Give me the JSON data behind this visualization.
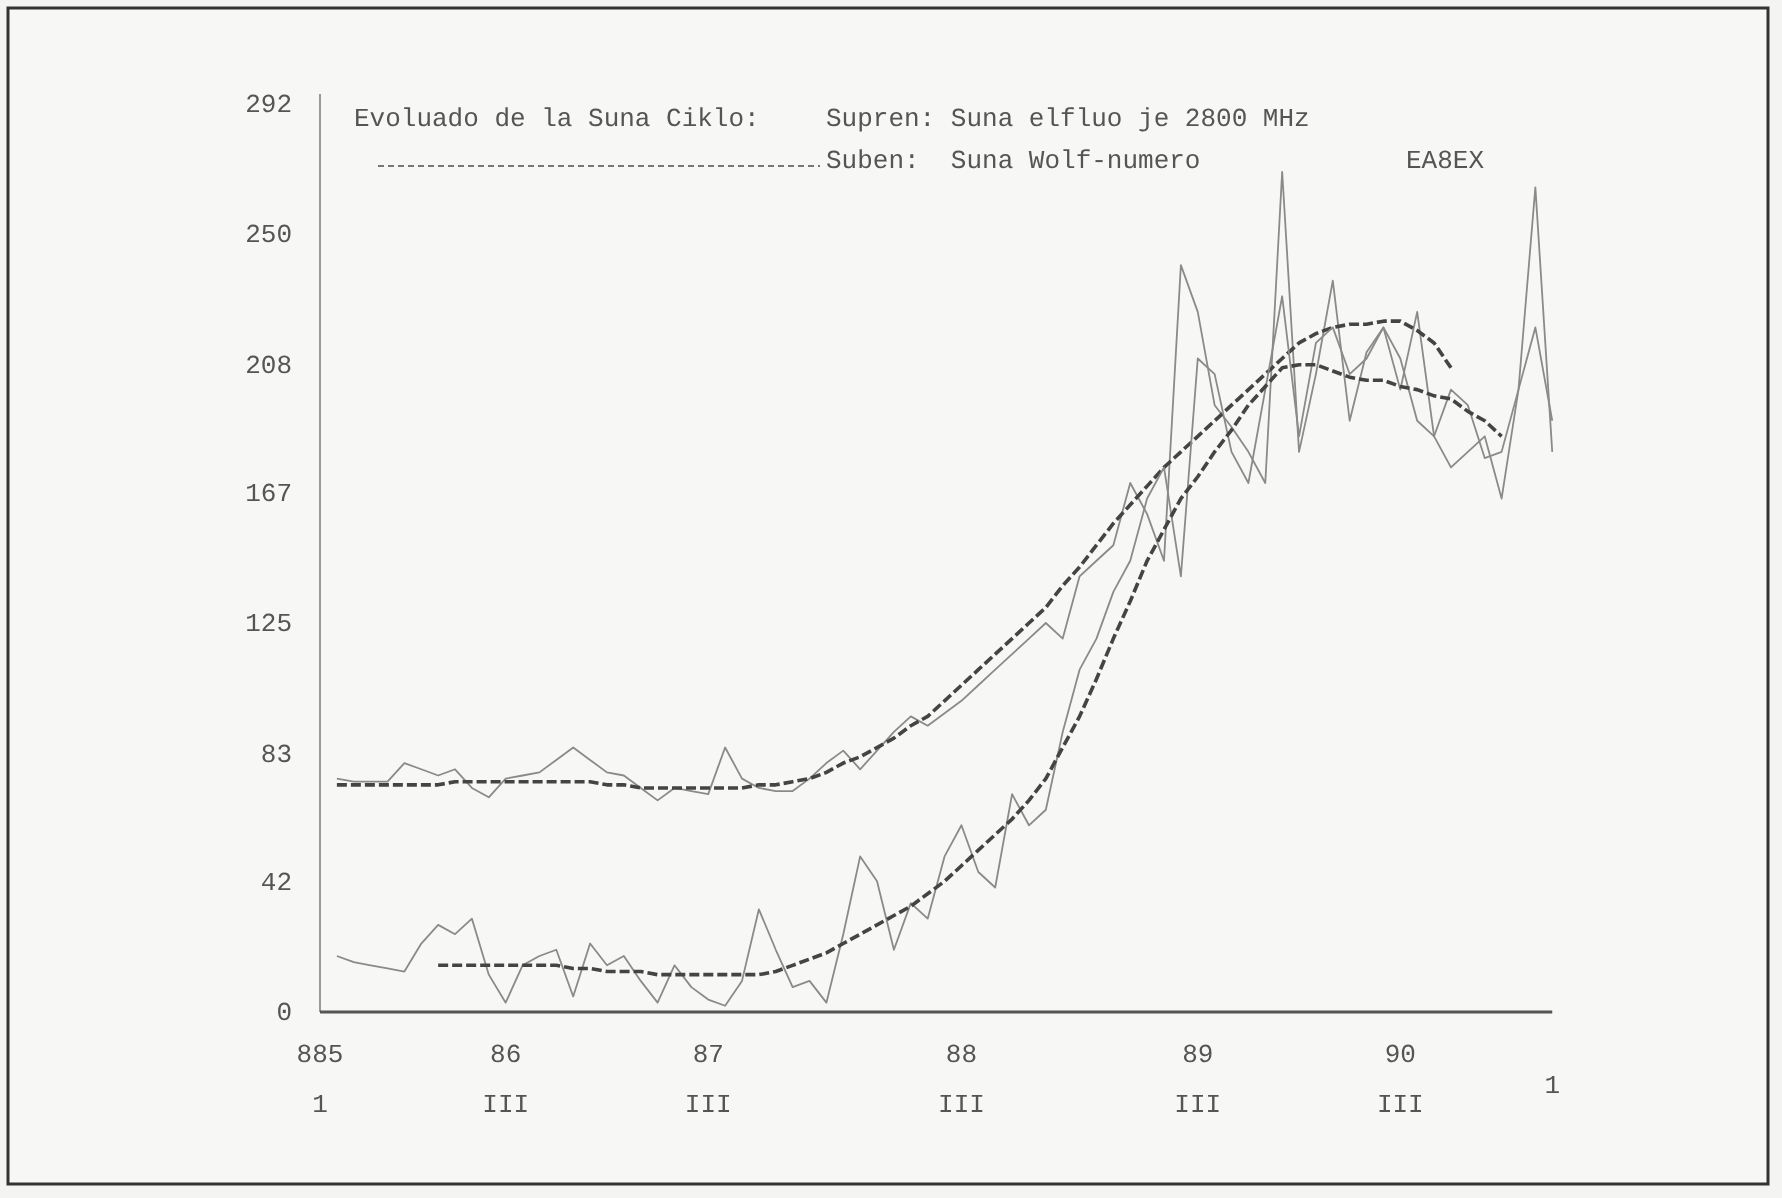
{
  "chart_data": {
    "type": "line",
    "title": "Evoluado de la Suna Ciklo:",
    "annotations": [
      "Supren: Suna elfluo je 2800 MHz",
      "Suben:  Suna Wolf-numero",
      "EA8EX"
    ],
    "categories": [
      "885\n1",
      null,
      null,
      null,
      null,
      null,
      null,
      null,
      null,
      null,
      null,
      "86\nIII",
      null,
      null,
      null,
      null,
      null,
      null,
      null,
      null,
      null,
      null,
      null,
      "87\nIII",
      null,
      null,
      null,
      null,
      null,
      null,
      null,
      null,
      null,
      null,
      null,
      null,
      null,
      null,
      "88\nIII",
      null,
      null,
      null,
      null,
      null,
      null,
      null,
      null,
      null,
      null,
      null,
      null,
      null,
      "89\nIII",
      null,
      null,
      null,
      null,
      null,
      null,
      null,
      null,
      null,
      null,
      null,
      "90\nIII",
      null,
      null,
      null,
      null,
      null,
      null,
      null,
      null,
      "\n1"
    ],
    "ylim": [
      0,
      295
    ],
    "yticks": [
      0,
      42,
      83,
      125,
      167,
      208,
      250,
      292
    ],
    "grid": false,
    "marker": "none",
    "series": [
      {
        "color": "#8a8a8a",
        "line_style": "solid",
        "values": [
          null,
          75,
          74,
          74,
          74,
          80,
          78,
          76,
          78,
          72,
          69,
          75,
          76,
          77,
          81,
          85,
          81,
          77,
          76,
          72,
          68,
          72,
          71,
          70,
          85,
          75,
          72,
          71,
          71,
          75,
          80,
          84,
          78,
          84,
          90,
          95,
          92,
          96,
          100,
          105,
          110,
          115,
          120,
          125,
          120,
          140,
          145,
          150,
          170,
          160,
          145,
          240,
          225,
          195,
          188,
          180,
          170,
          270,
          180,
          205,
          235,
          190,
          212,
          220,
          200,
          225,
          185,
          175,
          180,
          185,
          165,
          200,
          265,
          180
        ]
      },
      {
        "color": "#444444",
        "line_style": "dashed",
        "values": [
          null,
          73,
          73,
          73,
          73,
          73,
          73,
          73,
          74,
          74,
          74,
          74,
          74,
          74,
          74,
          74,
          74,
          73,
          73,
          72,
          72,
          72,
          72,
          72,
          72,
          72,
          73,
          73,
          74,
          75,
          77,
          80,
          82,
          85,
          88,
          92,
          95,
          100,
          105,
          110,
          115,
          120,
          125,
          130,
          137,
          143,
          150,
          157,
          163,
          169,
          175,
          180,
          185,
          190,
          195,
          200,
          205,
          210,
          215,
          218,
          220,
          221,
          221,
          222,
          222,
          219,
          215,
          207,
          null,
          null,
          null,
          null,
          null,
          null
        ]
      },
      {
        "color": "#8a8a8a",
        "line_style": "solid",
        "values": [
          null,
          18,
          16,
          15,
          14,
          13,
          22,
          28,
          25,
          30,
          12,
          3,
          15,
          18,
          20,
          5,
          22,
          15,
          18,
          10,
          3,
          15,
          8,
          4,
          2,
          10,
          33,
          20,
          8,
          10,
          3,
          25,
          50,
          42,
          20,
          35,
          30,
          50,
          60,
          45,
          40,
          70,
          60,
          65,
          90,
          110,
          120,
          135,
          145,
          165,
          175,
          140,
          210,
          205,
          180,
          170,
          200,
          230,
          185,
          215,
          220,
          205,
          210,
          220,
          210,
          190,
          185,
          200,
          195,
          178,
          180,
          200,
          220,
          190
        ]
      },
      {
        "color": "#444444",
        "line_style": "dashed",
        "values": [
          null,
          null,
          null,
          null,
          null,
          null,
          null,
          15,
          15,
          15,
          15,
          15,
          15,
          15,
          15,
          14,
          14,
          13,
          13,
          13,
          12,
          12,
          12,
          12,
          12,
          12,
          12,
          13,
          15,
          17,
          19,
          22,
          25,
          28,
          31,
          34,
          38,
          42,
          47,
          52,
          57,
          62,
          68,
          75,
          85,
          95,
          107,
          120,
          132,
          145,
          155,
          165,
          172,
          180,
          187,
          195,
          201,
          207,
          208,
          208,
          206,
          204,
          203,
          203,
          201,
          200,
          198,
          197,
          193,
          190,
          185,
          null,
          null,
          null
        ]
      }
    ]
  }
}
